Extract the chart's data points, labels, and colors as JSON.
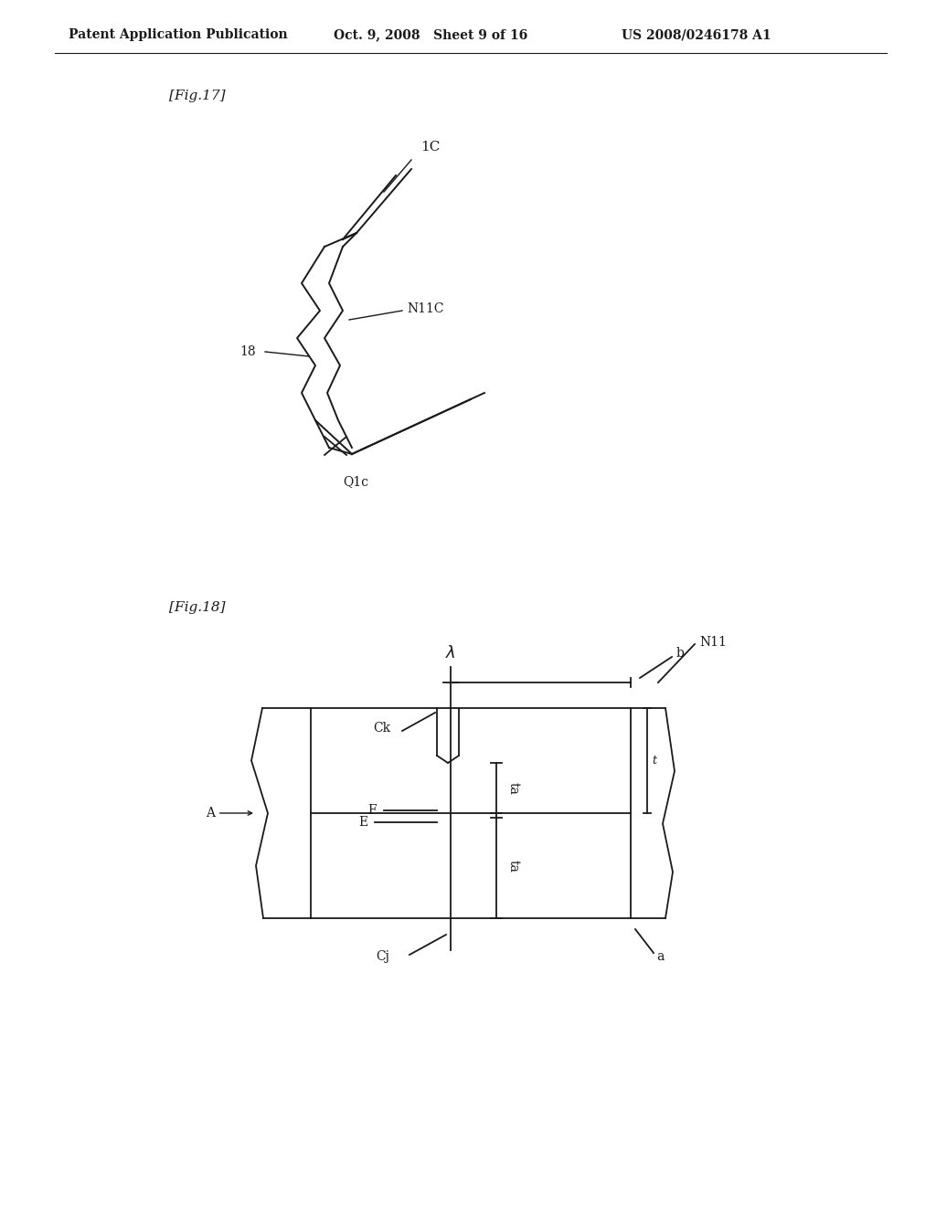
{
  "header_left": "Patent Application Publication",
  "header_mid": "Oct. 9, 2008   Sheet 9 of 16",
  "header_right": "US 2008/0246178 A1",
  "fig17_label": "[Fig.17]",
  "fig18_label": "[Fig.18]",
  "bg_color": "#ffffff",
  "line_color": "#1a1a1a",
  "header_fontsize": 10.5,
  "label_fontsize": 11,
  "annotation_fontsize": 10
}
